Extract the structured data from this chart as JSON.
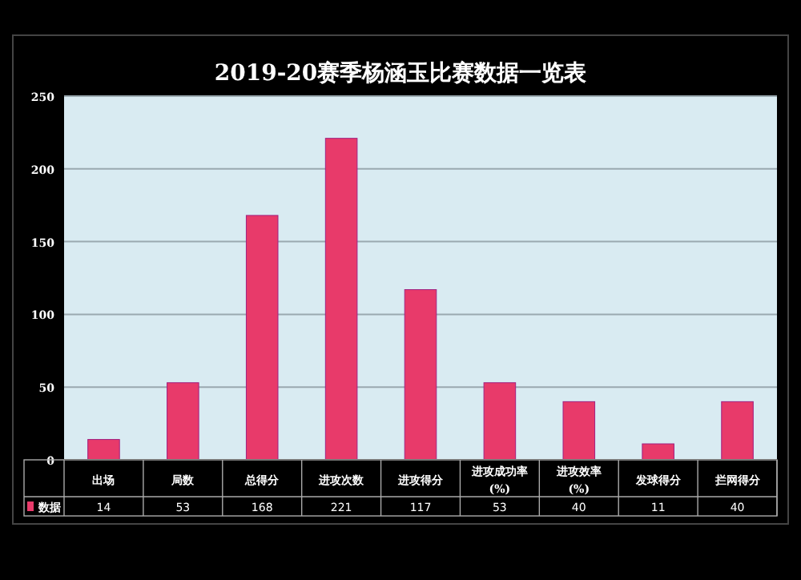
{
  "chart_data": {
    "type": "bar",
    "title": "2019-20赛季杨涵玉比赛数据一览表",
    "categories": [
      "出场",
      "局数",
      "总得分",
      "进攻次数",
      "进攻得分",
      "进攻成功率\n(%)",
      "进攻效率\n(%)",
      "发球得分",
      "拦网得分"
    ],
    "series": [
      {
        "name": "数据",
        "color": "#e83a6a",
        "values": [
          14,
          53,
          168,
          221,
          117,
          53,
          40,
          11,
          40
        ]
      }
    ],
    "ylim": [
      0,
      250
    ],
    "yticks": [
      0,
      50,
      100,
      150,
      200,
      250
    ],
    "grid": "y",
    "data_labels": true,
    "legend": "bottom"
  }
}
